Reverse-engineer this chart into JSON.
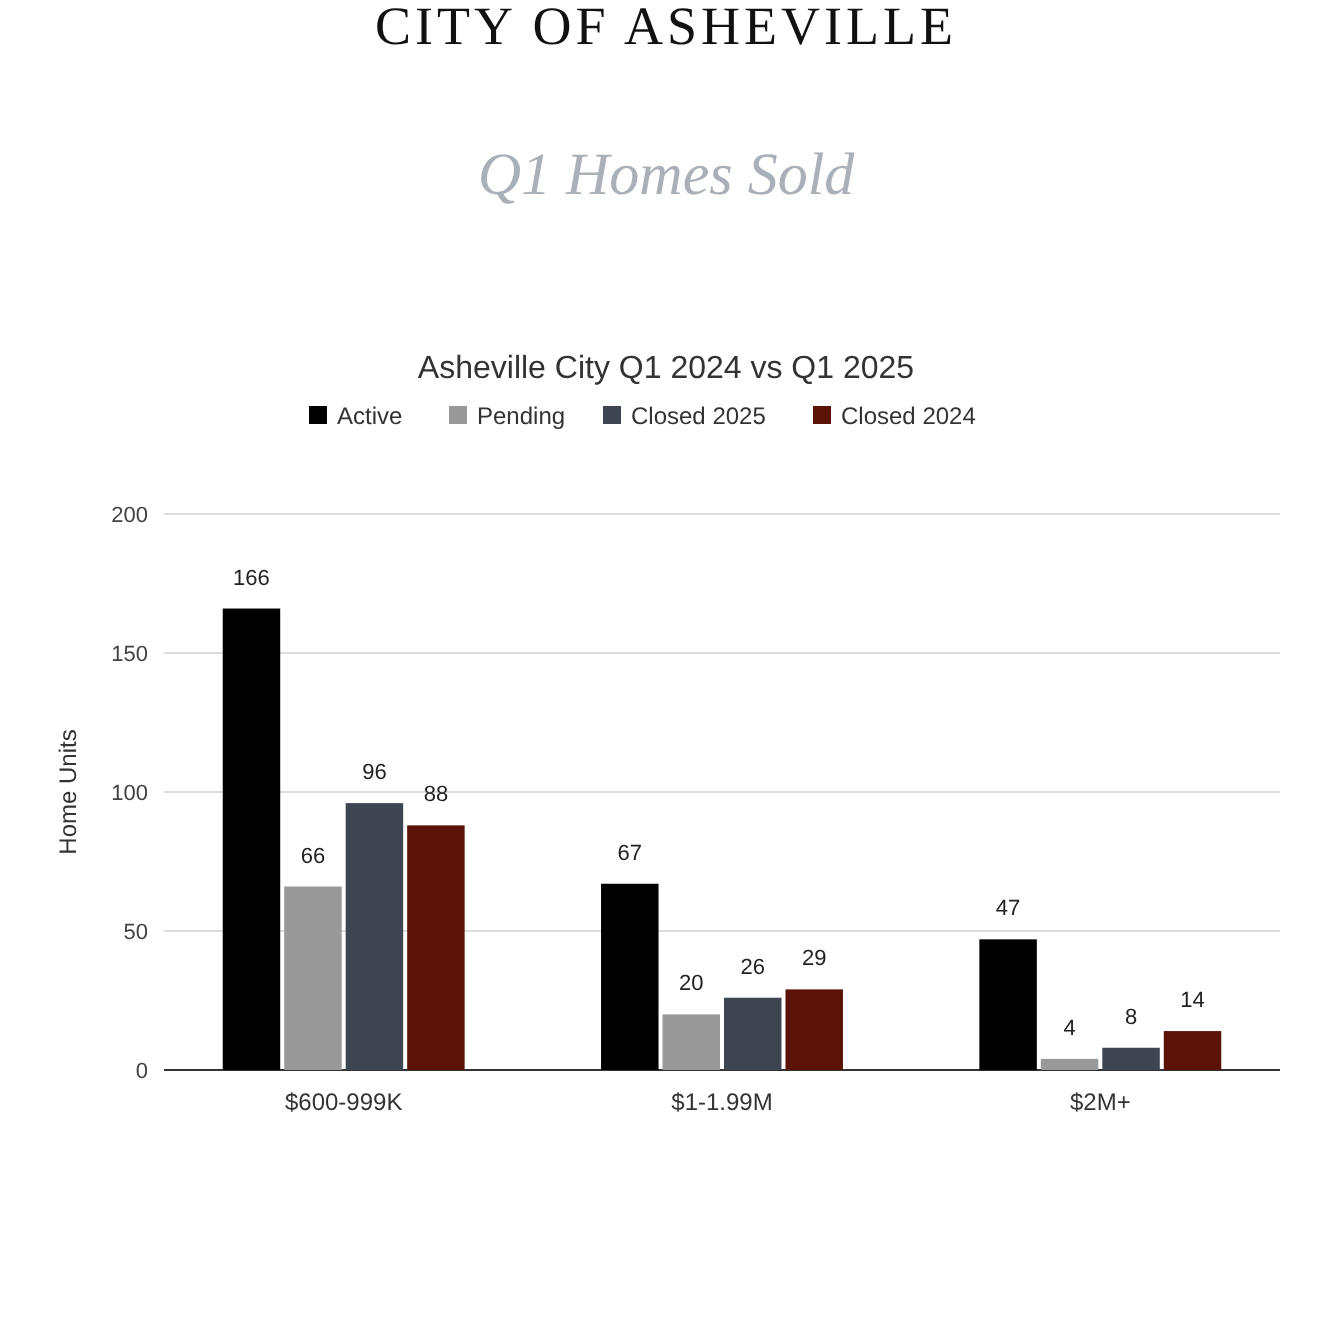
{
  "chart_data": {
    "type": "bar",
    "title": "Asheville City Q1 2024 vs Q1 2025",
    "ylabel": "Home Units",
    "annotations": [
      "CITY OF ASHEVILLE",
      "Q1 Homes Sold"
    ],
    "categories": [
      "$600-999K",
      "$1-1.99M",
      "$2M+"
    ],
    "series": [
      {
        "name": "Active",
        "color": "#000000",
        "values": [
          166,
          67,
          47
        ]
      },
      {
        "name": "Pending",
        "color": "#999999",
        "values": [
          66,
          20,
          4
        ]
      },
      {
        "name": "Closed 2025",
        "color": "#3d4551",
        "values": [
          96,
          26,
          8
        ]
      },
      {
        "name": "Closed 2024",
        "color": "#5c1307",
        "values": [
          88,
          29,
          14
        ]
      }
    ],
    "ylim": [
      0,
      200
    ],
    "yticks": [
      0,
      50,
      100,
      150,
      200
    ],
    "grid": "y",
    "legend": "top",
    "data_labels": true
  }
}
